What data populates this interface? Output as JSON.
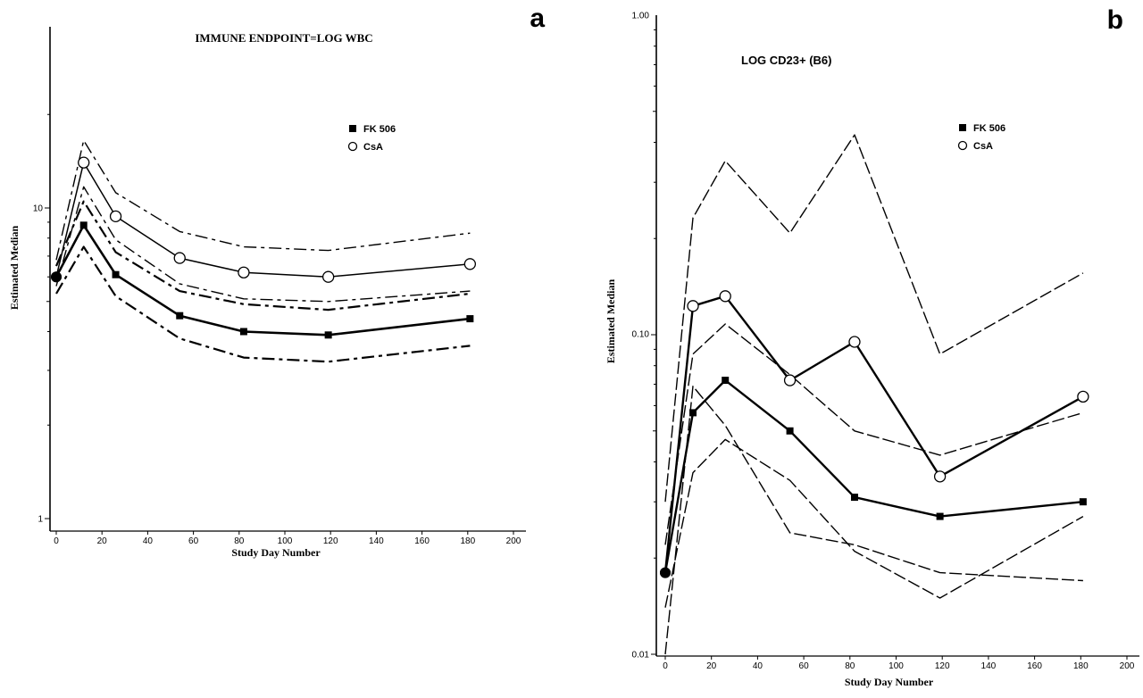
{
  "chart_data": [
    {
      "panel": "a",
      "type": "line",
      "title": "IMMUNE ENDPOINT=LOG WBC",
      "xlabel": "Study Day Number",
      "ylabel": "Estimated Median",
      "y_scale": "log",
      "xlim": [
        0,
        200
      ],
      "ylim": [
        1,
        25
      ],
      "x_ticks": [
        "0",
        "20",
        "40",
        "60",
        "80",
        "100",
        "120",
        "140",
        "160",
        "180",
        "200"
      ],
      "y_ticks": [
        "1",
        "10"
      ],
      "legend_position": "top-right",
      "legend": [
        {
          "label": "FK 506",
          "marker": "filled-square"
        },
        {
          "label": "CsA",
          "marker": "open-circle"
        }
      ],
      "x": [
        0,
        12,
        26,
        54,
        82,
        119,
        181
      ],
      "series": [
        {
          "name": "FK 506",
          "values": [
            6.0,
            8.8,
            6.1,
            4.5,
            4.0,
            3.9,
            4.4
          ]
        },
        {
          "name": "CsA",
          "values": [
            6.0,
            14.0,
            9.4,
            6.9,
            6.2,
            6.0,
            6.6
          ]
        }
      ],
      "confidence_bands": [
        {
          "series": "FK 506",
          "kind": "lower",
          "values": [
            5.3,
            7.5,
            5.2,
            3.8,
            3.3,
            3.2,
            3.6
          ]
        },
        {
          "series": "FK 506",
          "kind": "upper",
          "values": [
            6.5,
            10.5,
            7.2,
            5.4,
            4.9,
            4.7,
            5.3
          ]
        },
        {
          "series": "CsA",
          "kind": "lower",
          "values": [
            5.6,
            11.7,
            7.9,
            5.7,
            5.1,
            5.0,
            5.4
          ]
        },
        {
          "series": "CsA",
          "kind": "upper",
          "values": [
            6.8,
            16.5,
            11.2,
            8.4,
            7.5,
            7.3,
            8.3
          ]
        }
      ]
    },
    {
      "panel": "b",
      "type": "line",
      "title": "LOG CD23+ (B6)",
      "xlabel": "Study Day Number",
      "ylabel": "Estimated Median",
      "y_scale": "log",
      "xlim": [
        0,
        200
      ],
      "ylim": [
        0.01,
        1.0
      ],
      "x_ticks": [
        "0",
        "20",
        "40",
        "60",
        "80",
        "100",
        "120",
        "140",
        "160",
        "180",
        "200"
      ],
      "y_ticks": [
        "0.01",
        "0.10",
        "1.00"
      ],
      "legend_position": "top-right",
      "legend": [
        {
          "label": "FK 506",
          "marker": "filled-square"
        },
        {
          "label": "CsA",
          "marker": "open-circle"
        }
      ],
      "x": [
        0,
        12,
        26,
        54,
        82,
        119,
        181
      ],
      "series": [
        {
          "name": "FK 506",
          "values": [
            0.018,
            0.057,
            0.072,
            0.05,
            0.031,
            0.027,
            0.03
          ]
        },
        {
          "name": "CsA",
          "values": [
            0.018,
            0.123,
            0.132,
            0.072,
            0.095,
            0.036,
            0.064
          ]
        }
      ],
      "confidence_bands": [
        {
          "series": "FK 506",
          "kind": "lower",
          "values": [
            0.014,
            0.037,
            0.047,
            0.035,
            0.021,
            0.015,
            0.027
          ]
        },
        {
          "series": "FK 506",
          "kind": "upper",
          "values": [
            0.022,
            0.087,
            0.108,
            0.075,
            0.05,
            0.042,
            0.057
          ]
        },
        {
          "series": "CsA",
          "kind": "lower",
          "values": [
            0.01,
            0.069,
            0.052,
            0.024,
            0.022,
            0.018,
            0.017
          ]
        },
        {
          "series": "CsA",
          "kind": "upper",
          "values": [
            0.03,
            0.232,
            0.35,
            0.208,
            0.422,
            0.087,
            0.156
          ]
        }
      ]
    }
  ]
}
